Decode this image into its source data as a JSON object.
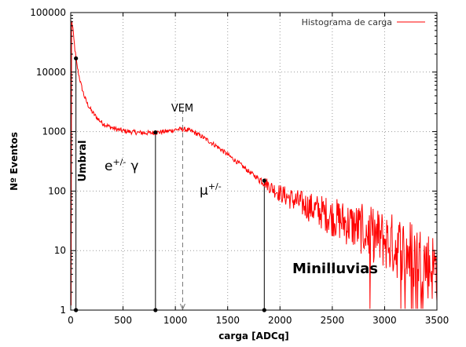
{
  "chart_data": {
    "type": "line",
    "title": "",
    "xlabel": "carga [ADCq]",
    "ylabel": "Nº Eventos",
    "xlim": [
      0,
      3500
    ],
    "ylim": [
      1,
      100000
    ],
    "yscale": "log",
    "grid": true,
    "legend_position": "top-right",
    "x_ticks": [
      "0",
      "500",
      "1000",
      "1500",
      "2000",
      "2500",
      "3000",
      "3500"
    ],
    "y_ticks": [
      "1",
      "10",
      "100",
      "1000",
      "10000",
      "100000"
    ],
    "series": [
      {
        "name": "Histograma de carga",
        "color": "#ff0000",
        "x": [
          10,
          20,
          30,
          40,
          50,
          60,
          80,
          100,
          130,
          160,
          200,
          250,
          300,
          350,
          400,
          450,
          500,
          550,
          600,
          650,
          700,
          750,
          800,
          850,
          900,
          950,
          1000,
          1050,
          1100,
          1150,
          1200,
          1250,
          1300,
          1350,
          1400,
          1450,
          1500,
          1550,
          1600,
          1650,
          1700,
          1750,
          1800,
          1850,
          1900,
          1950,
          2000,
          2100,
          2200,
          2300,
          2400,
          2500,
          2600,
          2700,
          2800,
          2900,
          3000,
          3100,
          3200,
          3300,
          3400,
          3500
        ],
        "y": [
          70000,
          55000,
          35000,
          24000,
          17000,
          13000,
          8500,
          6000,
          3900,
          2900,
          2200,
          1700,
          1400,
          1250,
          1150,
          1080,
          1030,
          1000,
          980,
          960,
          950,
          950,
          960,
          980,
          1000,
          1030,
          1080,
          1100,
          1080,
          1020,
          930,
          830,
          730,
          640,
          560,
          480,
          410,
          350,
          300,
          255,
          215,
          185,
          160,
          145,
          120,
          105,
          92,
          75,
          62,
          52,
          44,
          37,
          31,
          26,
          22,
          18,
          15,
          12,
          10,
          8,
          6,
          5
        ]
      }
    ],
    "markers": [
      {
        "x": 50,
        "y": 17000
      },
      {
        "x": 810,
        "y": 970
      },
      {
        "x": 1850,
        "y": 150
      }
    ],
    "vertical_lines": [
      {
        "x": 50,
        "y_top": 17000,
        "style": "solid"
      },
      {
        "x": 810,
        "y_top": 970,
        "style": "solid"
      },
      {
        "x": 1070,
        "y_top": 1100,
        "style": "dashed"
      },
      {
        "x": 1850,
        "y_top": 150,
        "style": "solid"
      }
    ],
    "annotations": {
      "umbral": "Umbral",
      "vem": "VEM",
      "electron": "e",
      "electron_sup": "+/-",
      "gamma": "γ",
      "muon": "μ",
      "muon_sup": "+/-",
      "minilluvias": "Minilluvias"
    }
  }
}
